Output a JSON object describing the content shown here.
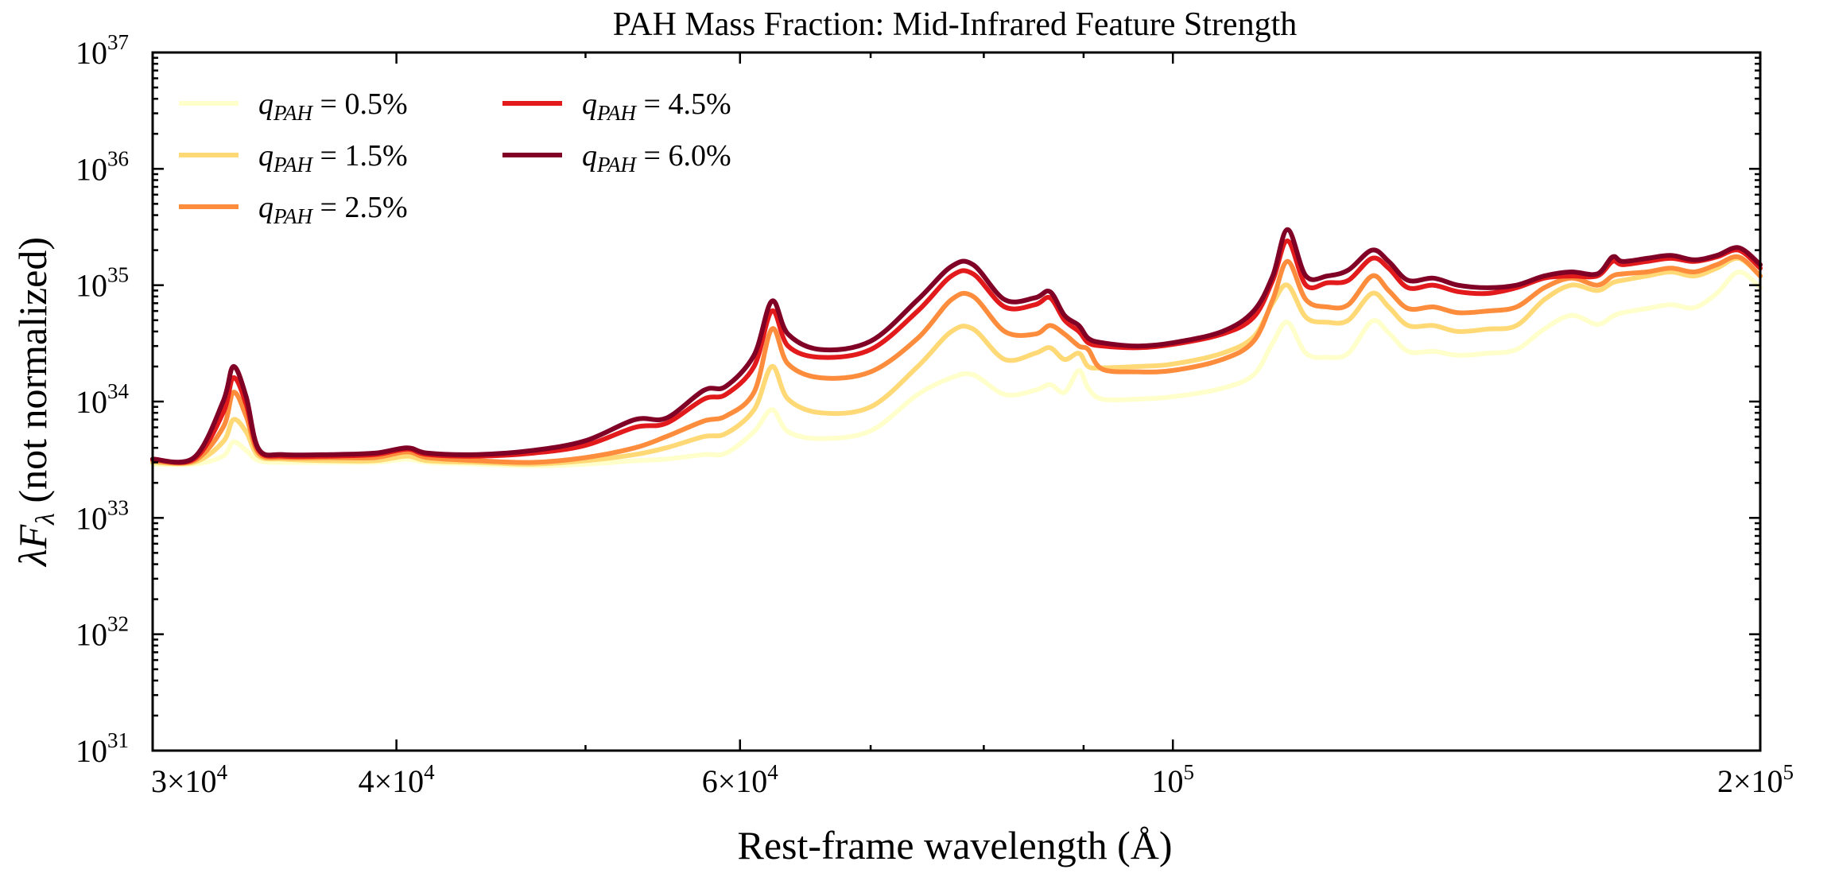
{
  "chart_data": {
    "type": "line",
    "title": "PAH Mass Fraction: Mid-Infrared Feature Strength",
    "xlabel": "Rest-frame wavelength (Å)",
    "ylabel_prefix": "λF",
    "ylabel_sub": "λ",
    "ylabel_suffix": " (not normalized)",
    "xscale": "log",
    "yscale": "log",
    "xlim": [
      30000,
      200000
    ],
    "ylim": [
      1e+31,
      1e+37
    ],
    "legend_position": "top-left",
    "x_ticks": [
      {
        "value": 30000,
        "mant": "3×10",
        "exp": "4"
      },
      {
        "value": 40000,
        "mant": "4×10",
        "exp": "4"
      },
      {
        "value": 60000,
        "mant": "6×10",
        "exp": "4"
      },
      {
        "value": 100000,
        "mant": "10",
        "exp": "5"
      },
      {
        "value": 200000,
        "mant": "2×10",
        "exp": "5"
      }
    ],
    "y_ticks": [
      {
        "value": 1e+31,
        "mant": "10",
        "exp": "31"
      },
      {
        "value": 1e+32,
        "mant": "10",
        "exp": "32"
      },
      {
        "value": 1e+33,
        "mant": "10",
        "exp": "33"
      },
      {
        "value": 1e+34,
        "mant": "10",
        "exp": "34"
      },
      {
        "value": 1e+35,
        "mant": "10",
        "exp": "35"
      },
      {
        "value": 1e+36,
        "mant": "10",
        "exp": "36"
      },
      {
        "value": 1e+37,
        "mant": "10",
        "exp": "37"
      }
    ],
    "x": [
      30000,
      31500,
      32600,
      33000,
      33500,
      34000,
      35000,
      37000,
      39000,
      40500,
      41500,
      44000,
      47000,
      50000,
      53000,
      55000,
      57500,
      59000,
      61000,
      62300,
      63500,
      66000,
      70000,
      74000,
      77000,
      79000,
      82000,
      85000,
      86500,
      88000,
      89500,
      90500,
      92000,
      96000,
      100000,
      106000,
      110000,
      112500,
      114500,
      117000,
      120000,
      123000,
      126500,
      129000,
      132000,
      136000,
      140000,
      145000,
      150000,
      155000,
      160000,
      165000,
      168000,
      170000,
      175000,
      180000,
      185000,
      190000,
      195000,
      200000
    ],
    "series": [
      {
        "name": "q_PAH = 0.5%",
        "label_var": "q",
        "label_sub": "PAH",
        "label_val": " = 0.5%",
        "color": "#ffffcc",
        "values": [
          2.9e+33,
          2.9e+33,
          3.4e+33,
          4.5e+33,
          3.8e+33,
          3.1e+33,
          3e+33,
          3e+33,
          3e+33,
          3.2e+33,
          3e+33,
          2.9e+33,
          2.8e+33,
          2.9e+33,
          3.1e+33,
          3.2e+33,
          3.5e+33,
          3.6e+33,
          5.5e+33,
          8.5e+33,
          5.5e+33,
          4.8e+33,
          5.6e+33,
          1.15e+34,
          1.6e+34,
          1.7e+34,
          1.15e+34,
          1.25e+34,
          1.4e+34,
          1.2e+34,
          1.85e+34,
          1.3e+34,
          1.05e+34,
          1.05e+34,
          1.1e+34,
          1.3e+34,
          1.7e+34,
          3.2e+34,
          4.8e+34,
          2.6e+34,
          2.4e+34,
          2.6e+34,
          4.9e+34,
          3.9e+34,
          2.7e+34,
          2.7e+34,
          2.5e+34,
          2.6e+34,
          2.8e+34,
          4.2e+34,
          5.5e+34,
          4.6e+34,
          5.4e+34,
          5.8e+34,
          6.3e+34,
          6.8e+34,
          6.4e+34,
          8.5e+34,
          1.3e+35,
          9.5e+34
        ]
      },
      {
        "name": "q_PAH = 1.5%",
        "label_var": "q",
        "label_sub": "PAH",
        "label_val": " = 1.5%",
        "color": "#fed976",
        "values": [
          3e+33,
          3e+33,
          4.5e+33,
          7e+33,
          5.5e+33,
          3.4e+33,
          3.2e+33,
          3.1e+33,
          3.1e+33,
          3.4e+33,
          3.1e+33,
          3e+33,
          2.9e+33,
          3.1e+33,
          3.5e+33,
          4e+33,
          5e+33,
          5.3e+33,
          8.5e+33,
          2e+34,
          1.05e+34,
          8e+33,
          9e+33,
          2e+34,
          4e+34,
          4.2e+34,
          2.3e+34,
          2.6e+34,
          2.9e+34,
          2.3e+34,
          2.6e+34,
          2e+34,
          1.95e+34,
          2e+34,
          2.1e+34,
          2.6e+34,
          3.6e+34,
          7e+34,
          1e+35,
          5.3e+34,
          4.8e+34,
          5e+34,
          8.5e+34,
          6.5e+34,
          4.5e+34,
          4.5e+34,
          4e+34,
          4.2e+34,
          4.5e+34,
          7.5e+34,
          1e+35,
          9e+34,
          1.05e+35,
          1.1e+35,
          1.2e+35,
          1.3e+35,
          1.2e+35,
          1.4e+35,
          1.7e+35,
          1.2e+35
        ]
      },
      {
        "name": "q_PAH = 2.5%",
        "label_var": "q",
        "label_sub": "PAH",
        "label_val": " = 2.5%",
        "color": "#fd8d3c",
        "values": [
          3.1e+33,
          3.1e+33,
          6e+33,
          1.2e+34,
          7.5e+33,
          3.6e+33,
          3.3e+33,
          3.3e+33,
          3.3e+33,
          3.7e+33,
          3.3e+33,
          3.1e+33,
          3e+33,
          3.3e+33,
          4e+33,
          5e+33,
          6.8e+33,
          7.5e+33,
          1.2e+34,
          4.2e+34,
          2.1e+34,
          1.6e+34,
          1.8e+34,
          3.5e+34,
          7.5e+34,
          8e+34,
          4e+34,
          3.8e+34,
          4.5e+34,
          3.8e+34,
          3e+34,
          2.8e+34,
          1.9e+34,
          1.8e+34,
          1.85e+34,
          2.3e+34,
          3.3e+34,
          7.5e+34,
          1.6e+35,
          7.5e+34,
          6.5e+34,
          6.8e+34,
          1.2e+35,
          9e+34,
          6.3e+34,
          6.5e+34,
          5.8e+34,
          6e+34,
          6.5e+34,
          9.5e+34,
          1.15e+35,
          1e+35,
          1.2e+35,
          1.25e+35,
          1.3e+35,
          1.4e+35,
          1.3e+35,
          1.5e+35,
          1.75e+35,
          1.2e+35
        ]
      },
      {
        "name": "q_PAH = 4.5%",
        "label_var": "q",
        "label_sub": "PAH",
        "label_val": " = 4.5%",
        "color": "#e31a1c",
        "values": [
          3.2e+33,
          3.2e+33,
          8e+33,
          1.6e+34,
          9.5e+33,
          3.8e+33,
          3.4e+33,
          3.4e+33,
          3.5e+33,
          3.9e+33,
          3.5e+33,
          3.4e+33,
          3.6e+33,
          4.2e+33,
          6e+33,
          6.5e+33,
          1.05e+34,
          1.15e+34,
          2e+34,
          6e+34,
          3e+34,
          2.4e+34,
          2.8e+34,
          6e+34,
          1.2e+35,
          1.25e+35,
          6.5e+34,
          6.8e+34,
          7.8e+34,
          5e+34,
          4e+34,
          3.2e+34,
          3e+34,
          2.9e+34,
          3.1e+34,
          3.8e+34,
          5.3e+34,
          1.1e+35,
          2.4e+35,
          1e+35,
          1.05e+35,
          1.1e+35,
          1.7e+35,
          1.4e+35,
          9.5e+34,
          1e+35,
          8.8e+34,
          8.5e+34,
          9.5e+34,
          1.15e+35,
          1.2e+35,
          1.2e+35,
          1.6e+35,
          1.5e+35,
          1.6e+35,
          1.7e+35,
          1.6e+35,
          1.75e+35,
          2e+35,
          1.4e+35
        ]
      },
      {
        "name": "q_PAH = 6.0%",
        "label_var": "q",
        "label_sub": "PAH",
        "label_val": " = 6.0%",
        "color": "#800026",
        "values": [
          3.2e+33,
          3.3e+33,
          1e+34,
          2e+34,
          1.1e+34,
          3.9e+33,
          3.5e+33,
          3.5e+33,
          3.6e+33,
          4e+33,
          3.6e+33,
          3.5e+33,
          3.8e+33,
          4.6e+33,
          7e+33,
          7.2e+33,
          1.25e+34,
          1.35e+34,
          2.5e+34,
          7.3e+34,
          3.8e+34,
          2.8e+34,
          3.3e+34,
          7.5e+34,
          1.45e+35,
          1.5e+35,
          7.5e+34,
          7.8e+34,
          8.8e+34,
          5.5e+34,
          4.5e+34,
          3.5e+34,
          3.2e+34,
          3e+34,
          3.2e+34,
          4e+34,
          6e+34,
          1.2e+35,
          3e+35,
          1.2e+35,
          1.2e+35,
          1.35e+35,
          2e+35,
          1.6e+35,
          1.1e+35,
          1.15e+35,
          1e+35,
          9.5e+34,
          1e+35,
          1.2e+35,
          1.3e+35,
          1.25e+35,
          1.75e+35,
          1.6e+35,
          1.7e+35,
          1.8e+35,
          1.65e+35,
          1.8e+35,
          2.1e+35,
          1.5e+35
        ]
      }
    ]
  }
}
